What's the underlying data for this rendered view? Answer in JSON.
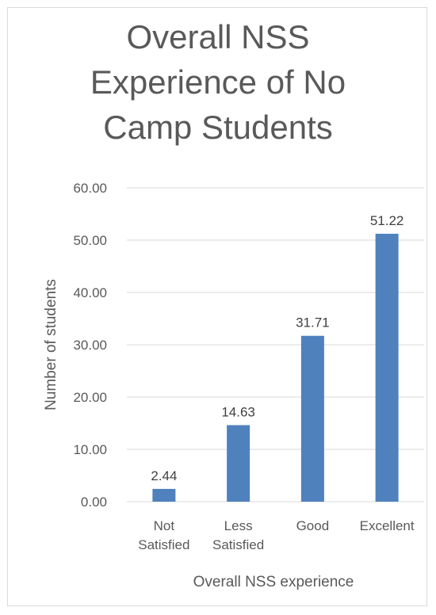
{
  "chart_data": {
    "type": "bar",
    "title": "Overall NSS\nExperience of No\nCamp Students",
    "xlabel": "Overall NSS  experience",
    "ylabel": "Number of students",
    "categories": [
      [
        "Not",
        "Satisfied"
      ],
      [
        "Less",
        "Satisfied"
      ],
      [
        "Good"
      ],
      [
        "Excellent"
      ]
    ],
    "values": [
      2.44,
      14.63,
      31.71,
      51.22
    ],
    "data_labels": [
      "2.44",
      "14.63",
      "31.71",
      "51.22"
    ],
    "yticks": [
      "0.00",
      "10.00",
      "20.00",
      "30.00",
      "40.00",
      "50.00",
      "60.00"
    ],
    "ylim": [
      0,
      60
    ],
    "grid": true,
    "bar_color": "#4f81bd"
  }
}
